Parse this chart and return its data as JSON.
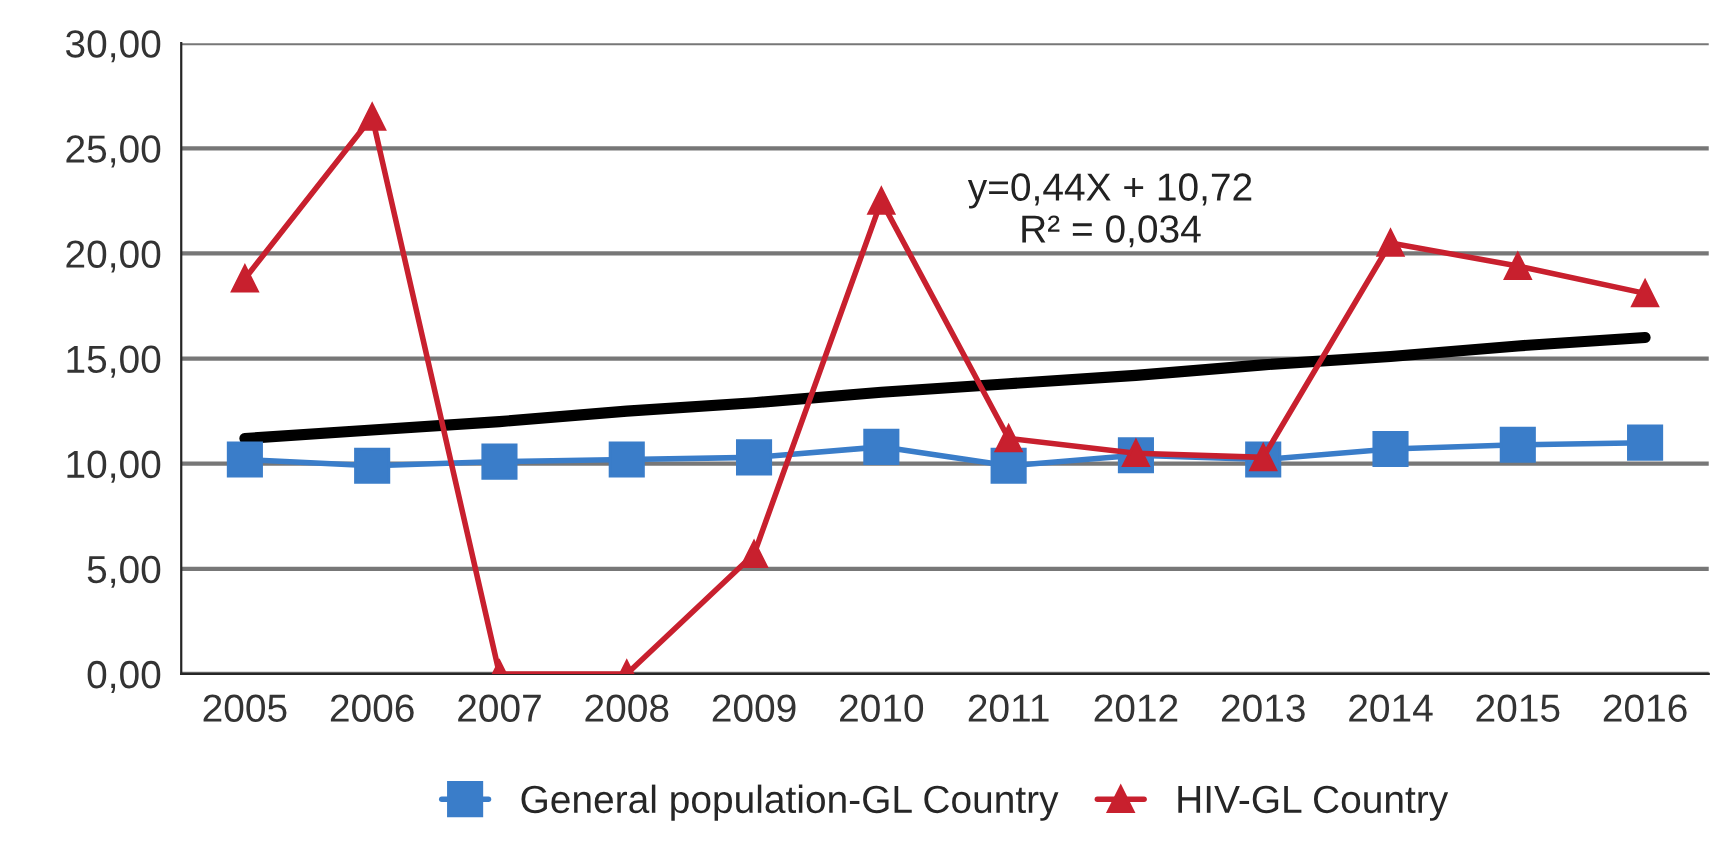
{
  "chart_data": {
    "type": "line",
    "categories": [
      "2005",
      "2006",
      "2007",
      "2008",
      "2009",
      "2010",
      "2011",
      "2012",
      "2013",
      "2014",
      "2015",
      "2016"
    ],
    "series": [
      {
        "name": "General population-GL Country",
        "color": "#3a7dc9",
        "marker": "square",
        "values": [
          10.2,
          9.9,
          10.1,
          10.2,
          10.3,
          10.8,
          9.9,
          10.4,
          10.2,
          10.7,
          10.9,
          11.0
        ]
      },
      {
        "name": "HIV-GL Country",
        "color": "#c8202e",
        "marker": "triangle",
        "values": [
          18.8,
          26.5,
          0,
          0,
          5.7,
          22.5,
          11.2,
          10.5,
          10.3,
          20.5,
          19.4,
          18.1
        ]
      },
      {
        "type": "line",
        "color": "#000000",
        "marker": "none",
        "values": [
          11.2,
          11.6,
          12.0,
          12.5,
          12.9,
          13.4,
          13.8,
          14.2,
          14.7,
          15.1,
          15.6,
          16.0
        ]
      }
    ],
    "ylim": [
      0,
      30
    ],
    "yticks": [
      {
        "value": 0,
        "label": "0,00"
      },
      {
        "value": 5,
        "label": "5,00"
      },
      {
        "value": 10,
        "label": "10,00"
      },
      {
        "value": 15,
        "label": "15,00"
      },
      {
        "value": 20,
        "label": "20,00"
      },
      {
        "value": 25,
        "label": "25,00"
      },
      {
        "value": 30,
        "label": "30,00"
      }
    ],
    "annotations": [
      "y=0,44X + 10,72\nR² = 0,034"
    ],
    "grid": "y",
    "legend": "bottom"
  }
}
